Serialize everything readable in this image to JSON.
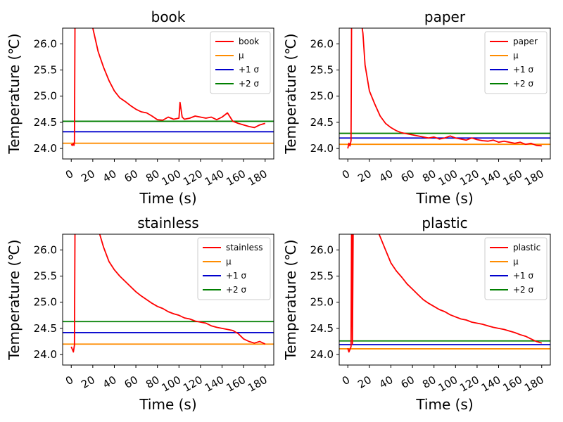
{
  "figure": {
    "background": "#ffffff"
  },
  "chart_data": [
    {
      "type": "line",
      "title": "book",
      "xlabel": "Time (s)",
      "ylabel": "Temperature (℃)",
      "xlim": [
        -8,
        188
      ],
      "ylim": [
        23.8,
        26.3
      ],
      "xticks": [
        0,
        20,
        40,
        60,
        80,
        100,
        120,
        140,
        160,
        180
      ],
      "xtick_labels": [
        "0",
        "20",
        "40",
        "60",
        "80",
        "100",
        "120",
        "140",
        "160",
        "180"
      ],
      "yticks": [
        24.0,
        24.5,
        25.0,
        25.5,
        26.0
      ],
      "ytick_labels": [
        "24.0",
        "24.5",
        "25.0",
        "25.5",
        "26.0"
      ],
      "grid": false,
      "legend_position": "top-right",
      "series": [
        {
          "name": "book",
          "color": "#ff0000",
          "x": [
            0,
            1,
            2,
            2.5,
            3,
            3.5,
            4,
            10,
            15,
            20,
            25,
            30,
            35,
            40,
            45,
            50,
            55,
            60,
            65,
            70,
            75,
            80,
            85,
            90,
            95,
            100,
            101,
            103,
            105,
            110,
            115,
            120,
            125,
            130,
            135,
            140,
            145,
            150,
            155,
            160,
            165,
            170,
            175,
            180
          ],
          "y": [
            24.08,
            24.06,
            24.1,
            24.06,
            24.12,
            26.5,
            26.5,
            26.5,
            26.5,
            26.3,
            25.85,
            25.55,
            25.3,
            25.1,
            24.97,
            24.9,
            24.82,
            24.75,
            24.7,
            24.68,
            24.62,
            24.55,
            24.54,
            24.6,
            24.56,
            24.58,
            24.88,
            24.6,
            24.56,
            24.58,
            24.62,
            24.6,
            24.58,
            24.6,
            24.55,
            24.6,
            24.68,
            24.52,
            24.48,
            24.45,
            24.42,
            24.4,
            24.45,
            24.48
          ]
        }
      ],
      "hlines": [
        {
          "name": "μ",
          "value": 24.1,
          "color": "#ff8c00"
        },
        {
          "name": "+1 σ",
          "value": 24.32,
          "color": "#0000cd"
        },
        {
          "name": "+2 σ",
          "value": 24.52,
          "color": "#007f00"
        }
      ]
    },
    {
      "type": "line",
      "title": "paper",
      "xlabel": "Time (s)",
      "ylabel": "Temperature (℃)",
      "xlim": [
        -8,
        188
      ],
      "ylim": [
        23.8,
        26.3
      ],
      "xticks": [
        0,
        20,
        40,
        60,
        80,
        100,
        120,
        140,
        160,
        180
      ],
      "xtick_labels": [
        "0",
        "20",
        "40",
        "60",
        "80",
        "100",
        "120",
        "140",
        "160",
        "180"
      ],
      "yticks": [
        24.0,
        24.5,
        25.0,
        25.5,
        26.0
      ],
      "ytick_labels": [
        "24.0",
        "24.5",
        "25.0",
        "25.5",
        "26.0"
      ],
      "grid": false,
      "legend_position": "top-right",
      "series": [
        {
          "name": "paper",
          "color": "#ff0000",
          "x": [
            0,
            1,
            2,
            3,
            3.5,
            4,
            12,
            14,
            16,
            20,
            25,
            30,
            35,
            40,
            45,
            50,
            55,
            60,
            65,
            70,
            75,
            80,
            85,
            90,
            95,
            100,
            105,
            110,
            115,
            120,
            125,
            130,
            135,
            140,
            145,
            150,
            155,
            160,
            165,
            170,
            175,
            180
          ],
          "y": [
            24.0,
            24.1,
            24.05,
            24.15,
            26.5,
            26.5,
            26.5,
            26.2,
            25.6,
            25.1,
            24.85,
            24.62,
            24.48,
            24.4,
            24.34,
            24.3,
            24.28,
            24.26,
            24.24,
            24.22,
            24.2,
            24.22,
            24.18,
            24.2,
            24.24,
            24.2,
            24.18,
            24.16,
            24.2,
            24.17,
            24.15,
            24.14,
            24.16,
            24.12,
            24.14,
            24.12,
            24.1,
            24.12,
            24.08,
            24.1,
            24.06,
            24.05
          ]
        }
      ],
      "hlines": [
        {
          "name": "μ",
          "value": 24.08,
          "color": "#ff8c00"
        },
        {
          "name": "+1 σ",
          "value": 24.2,
          "color": "#0000cd"
        },
        {
          "name": "+2 σ",
          "value": 24.29,
          "color": "#007f00"
        }
      ]
    },
    {
      "type": "line",
      "title": "stainless",
      "xlabel": "Time (s)",
      "ylabel": "Temperature (℃)",
      "xlim": [
        -8,
        188
      ],
      "ylim": [
        23.8,
        26.3
      ],
      "xticks": [
        0,
        20,
        40,
        60,
        80,
        100,
        120,
        140,
        160,
        180
      ],
      "xtick_labels": [
        "0",
        "20",
        "40",
        "60",
        "80",
        "100",
        "120",
        "140",
        "160",
        "180"
      ],
      "yticks": [
        24.0,
        24.5,
        25.0,
        25.5,
        26.0
      ],
      "ytick_labels": [
        "24.0",
        "24.5",
        "25.0",
        "25.5",
        "26.0"
      ],
      "grid": false,
      "legend_position": "top-right",
      "series": [
        {
          "name": "stainless",
          "color": "#ff0000",
          "x": [
            0,
            1,
            2,
            3,
            3.5,
            4,
            20,
            25,
            30,
            35,
            40,
            45,
            50,
            55,
            60,
            65,
            70,
            75,
            80,
            85,
            90,
            95,
            100,
            105,
            110,
            115,
            120,
            125,
            130,
            135,
            140,
            145,
            150,
            155,
            160,
            165,
            170,
            175,
            180
          ],
          "y": [
            24.15,
            24.1,
            24.05,
            24.18,
            26.5,
            26.5,
            26.5,
            26.4,
            26.05,
            25.78,
            25.62,
            25.5,
            25.4,
            25.3,
            25.2,
            25.12,
            25.05,
            24.98,
            24.92,
            24.88,
            24.82,
            24.78,
            24.75,
            24.7,
            24.68,
            24.64,
            24.62,
            24.6,
            24.55,
            24.52,
            24.5,
            24.48,
            24.46,
            24.4,
            24.3,
            24.25,
            24.22,
            24.25,
            24.2
          ]
        }
      ],
      "hlines": [
        {
          "name": "μ",
          "value": 24.2,
          "color": "#ff8c00"
        },
        {
          "name": "+1 σ",
          "value": 24.42,
          "color": "#0000cd"
        },
        {
          "name": "+2 σ",
          "value": 24.63,
          "color": "#007f00"
        }
      ]
    },
    {
      "type": "line",
      "title": "plastic",
      "xlabel": "Time (s)",
      "ylabel": "Temperature (℃)",
      "xlim": [
        -8,
        188
      ],
      "ylim": [
        23.8,
        26.3
      ],
      "xticks": [
        0,
        20,
        40,
        60,
        80,
        100,
        120,
        140,
        160,
        180
      ],
      "xtick_labels": [
        "0",
        "20",
        "40",
        "60",
        "80",
        "100",
        "120",
        "140",
        "160",
        "180"
      ],
      "yticks": [
        24.0,
        24.5,
        25.0,
        25.5,
        26.0
      ],
      "ytick_labels": [
        "24.0",
        "24.5",
        "25.0",
        "25.5",
        "26.0"
      ],
      "grid": false,
      "legend_position": "top-right",
      "series": [
        {
          "name": "plastic",
          "color": "#ff0000",
          "x": [
            0,
            1,
            2,
            3,
            3.5,
            4,
            4.3,
            5,
            25,
            30,
            35,
            40,
            45,
            50,
            55,
            60,
            65,
            70,
            75,
            80,
            85,
            90,
            95,
            100,
            105,
            110,
            115,
            120,
            125,
            130,
            135,
            140,
            145,
            150,
            155,
            160,
            165,
            170,
            175,
            180
          ],
          "y": [
            24.12,
            24.05,
            24.1,
            24.15,
            26.5,
            26.5,
            24.2,
            26.5,
            26.5,
            26.25,
            26.0,
            25.75,
            25.6,
            25.48,
            25.35,
            25.25,
            25.15,
            25.05,
            24.98,
            24.92,
            24.86,
            24.82,
            24.76,
            24.72,
            24.68,
            24.66,
            24.62,
            24.6,
            24.58,
            24.55,
            24.52,
            24.5,
            24.48,
            24.45,
            24.42,
            24.38,
            24.35,
            24.3,
            24.25,
            24.22
          ]
        }
      ],
      "hlines": [
        {
          "name": "μ",
          "value": 24.11,
          "color": "#ff8c00"
        },
        {
          "name": "+1 σ",
          "value": 24.19,
          "color": "#0000cd"
        },
        {
          "name": "+2 σ",
          "value": 24.26,
          "color": "#007f00"
        }
      ]
    }
  ]
}
